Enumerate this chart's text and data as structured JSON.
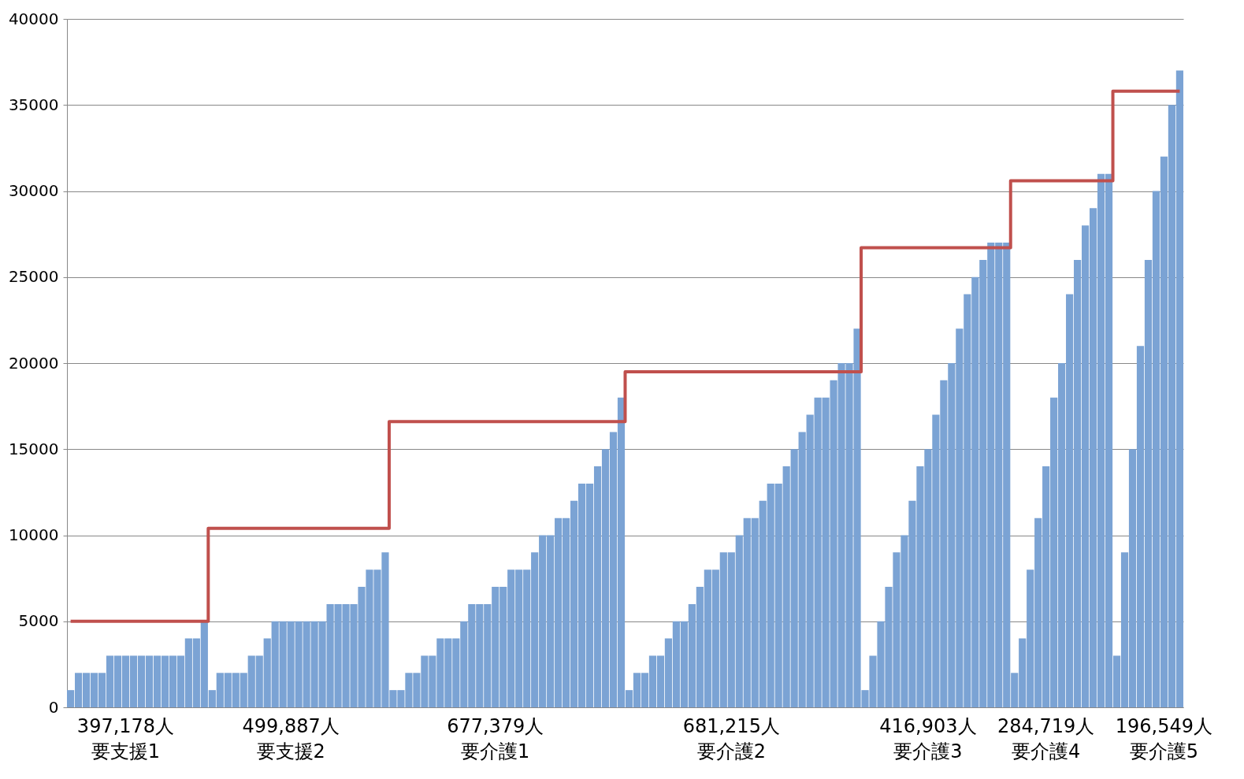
{
  "chart_data": {
    "type": "bar",
    "categories": [
      null,
      null,
      null,
      null,
      null,
      null,
      null,
      "397,178人要支援1",
      null,
      null,
      null,
      null,
      null,
      null,
      null,
      null,
      null,
      null,
      null,
      null,
      null,
      null,
      null,
      null,
      null,
      null,
      null,
      null,
      "499,887人要支援2",
      null,
      null,
      null,
      null,
      null,
      null,
      null,
      null,
      null,
      null,
      null,
      null,
      null,
      null,
      null,
      null,
      null,
      null,
      null,
      null,
      null,
      null,
      null,
      null,
      null,
      "677,379人要介護1",
      null,
      null,
      null,
      null,
      null,
      null,
      null,
      null,
      null,
      null,
      null,
      null,
      null,
      null,
      null,
      null,
      null,
      null,
      null,
      null,
      null,
      null,
      null,
      null,
      null,
      null,
      null,
      null,
      null,
      "681,215人要介護2",
      null,
      null,
      null,
      null,
      null,
      null,
      null,
      null,
      null,
      null,
      null,
      null,
      null,
      null,
      null,
      null,
      null,
      null,
      null,
      null,
      null,
      null,
      null,
      null,
      "416,903人要介護3",
      null,
      null,
      null,
      null,
      null,
      null,
      null,
      null,
      null,
      null,
      null,
      null,
      null,
      null,
      "284,719人要介護4",
      null,
      null,
      null,
      null,
      null,
      null,
      null,
      null,
      null,
      null,
      null,
      null,
      null,
      null,
      "196,549人要介護5",
      null,
      null
    ],
    "series": [
      {
        "color": "#7ba3d4",
        "values": [
          1000,
          2000,
          2000,
          2000,
          2000,
          3000,
          3000,
          3000,
          3000,
          3000,
          3000,
          3000,
          3000,
          3000,
          3000,
          4000,
          4000,
          5000,
          1000,
          2000,
          2000,
          2000,
          2000,
          3000,
          3000,
          4000,
          5000,
          5000,
          5000,
          5000,
          5000,
          5000,
          5000,
          6000,
          6000,
          6000,
          6000,
          7000,
          8000,
          8000,
          9000,
          1000,
          1000,
          2000,
          2000,
          3000,
          3000,
          4000,
          4000,
          4000,
          5000,
          6000,
          6000,
          6000,
          7000,
          7000,
          8000,
          8000,
          8000,
          9000,
          10000,
          10000,
          11000,
          11000,
          12000,
          13000,
          13000,
          14000,
          15000,
          16000,
          18000,
          1000,
          2000,
          2000,
          3000,
          3000,
          4000,
          5000,
          5000,
          6000,
          7000,
          8000,
          8000,
          9000,
          9000,
          10000,
          11000,
          11000,
          12000,
          13000,
          13000,
          14000,
          15000,
          16000,
          17000,
          18000,
          18000,
          19000,
          20000,
          20000,
          22000,
          1000,
          3000,
          5000,
          7000,
          9000,
          10000,
          12000,
          14000,
          15000,
          17000,
          19000,
          20000,
          22000,
          24000,
          25000,
          26000,
          27000,
          27000,
          27000,
          2000,
          4000,
          8000,
          11000,
          14000,
          18000,
          20000,
          24000,
          26000,
          28000,
          29000,
          31000,
          31000,
          3000,
          9000,
          15000,
          21000,
          26000,
          30000,
          32000,
          35000,
          37000
        ]
      },
      {
        "type": "step",
        "color": "#c0504d",
        "values": [
          5000,
          5000,
          5000,
          5000,
          5000,
          5000,
          5000,
          5000,
          5000,
          5000,
          5000,
          5000,
          5000,
          5000,
          5000,
          5000,
          5000,
          5000,
          10400,
          10400,
          10400,
          10400,
          10400,
          10400,
          10400,
          10400,
          10400,
          10400,
          10400,
          10400,
          10400,
          10400,
          10400,
          10400,
          10400,
          10400,
          10400,
          10400,
          10400,
          10400,
          10400,
          16600,
          16600,
          16600,
          16600,
          16600,
          16600,
          16600,
          16600,
          16600,
          16600,
          16600,
          16600,
          16600,
          16600,
          16600,
          16600,
          16600,
          16600,
          16600,
          16600,
          16600,
          16600,
          16600,
          16600,
          16600,
          16600,
          16600,
          16600,
          16600,
          16600,
          19500,
          19500,
          19500,
          19500,
          19500,
          19500,
          19500,
          19500,
          19500,
          19500,
          19500,
          19500,
          19500,
          19500,
          19500,
          19500,
          19500,
          19500,
          19500,
          19500,
          19500,
          19500,
          19500,
          19500,
          19500,
          19500,
          19500,
          19500,
          19500,
          19500,
          26700,
          26700,
          26700,
          26700,
          26700,
          26700,
          26700,
          26700,
          26700,
          26700,
          26700,
          26700,
          26700,
          26700,
          26700,
          26700,
          26700,
          26700,
          26700,
          30600,
          30600,
          30600,
          30600,
          30600,
          30600,
          30600,
          30600,
          30600,
          30600,
          30600,
          30600,
          30600,
          35800,
          35800,
          35800,
          35800,
          35800,
          35800,
          35800,
          35800,
          35800
        ]
      }
    ],
    "ylim": [
      0,
      40000
    ],
    "yticks": [
      0,
      5000,
      10000,
      15000,
      20000,
      25000,
      30000,
      35000,
      40000
    ],
    "grid": "y"
  }
}
